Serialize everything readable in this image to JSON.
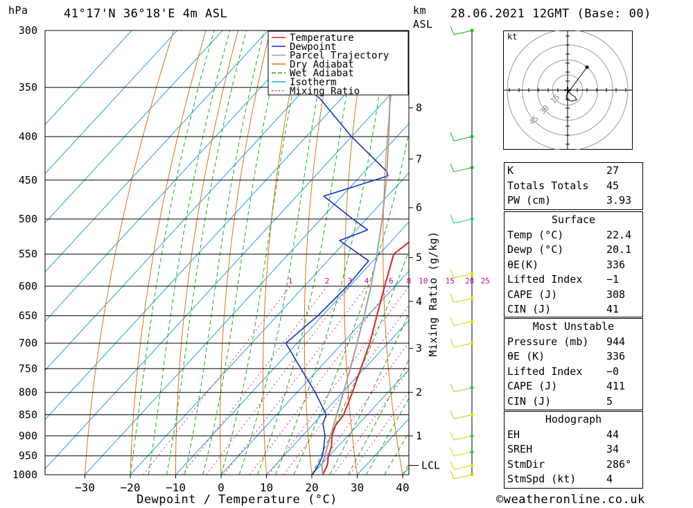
{
  "header": {
    "pressure_unit": "hPa",
    "location": "41°17'N 36°18'E 4m ASL",
    "height_unit_top": "km",
    "height_unit_bottom": "ASL",
    "datetime": "28.06.2021 12GMT (Base: 00)"
  },
  "footer": {
    "copyright": "©weatheronline.co.uk"
  },
  "chart_data": {
    "type": "line",
    "title": "",
    "xlabel": "Dewpoint / Temperature (°C)",
    "ylabel": "hPa",
    "right_axis_label": "Mixing Ratio (g/kg)",
    "pressure_levels": [
      300,
      350,
      400,
      450,
      500,
      550,
      600,
      650,
      700,
      750,
      800,
      850,
      900,
      950,
      1000
    ],
    "pressure_tick_labels": [
      "300",
      "350",
      "400",
      "450",
      "500",
      "550",
      "600",
      "650",
      "700",
      "750",
      "800",
      "850",
      "900",
      "950",
      "1000"
    ],
    "x_ticks": [
      -30,
      -20,
      -10,
      0,
      10,
      20,
      30,
      40
    ],
    "x_tick_labels": [
      "−30",
      "−20",
      "−10",
      "0",
      "10",
      "20",
      "30",
      "40"
    ],
    "ylim": [
      1000,
      300
    ],
    "log_pressure_axis": true,
    "km_ticks": [
      {
        "km": 1,
        "pressure": 900
      },
      {
        "km": 2,
        "pressure": 800
      },
      {
        "km": 3,
        "pressure": 710
      },
      {
        "km": 4,
        "pressure": 625
      },
      {
        "km": 5,
        "pressure": 555
      },
      {
        "km": 6,
        "pressure": 485
      },
      {
        "km": 7,
        "pressure": 425
      },
      {
        "km": 8,
        "pressure": 370
      }
    ],
    "km_tick_labels": [
      "1",
      "2",
      "3",
      "4",
      "5",
      "6",
      "7",
      "8"
    ],
    "lcl_label": "LCL",
    "lcl_pressure": 975,
    "mixing_ratio_labels": [
      "1",
      "2",
      "3",
      "4",
      "6",
      "8",
      "10",
      "15",
      "20",
      "25"
    ],
    "legend": {
      "placement": "top-right",
      "entries": [
        "Temperature",
        "Dewpoint",
        "Parcel Trajectory",
        "Dry Adiabat",
        "Wet Adiabat",
        "Isotherm",
        "Mixing Ratio"
      ],
      "colors": [
        "#e02020",
        "#1030d0",
        "#a0a0a0",
        "#e07010",
        "#10b010",
        "#20a0e0",
        "#e020a0"
      ]
    },
    "series": [
      {
        "name": "Temperature",
        "color": "#e02020",
        "pressure": [
          1000,
          975,
          950,
          925,
          900,
          875,
          850,
          800,
          750,
          700,
          650,
          600,
          550,
          530,
          500,
          450,
          400,
          350,
          320,
          300
        ],
        "values": [
          22.4,
          21.5,
          19.8,
          18.5,
          16.5,
          15.2,
          14.8,
          12.2,
          9.2,
          6.0,
          2.0,
          -2.3,
          -6.8,
          -5.8,
          -10.3,
          -17.5,
          -25.0,
          -34.5,
          -40.5,
          -46.0
        ]
      },
      {
        "name": "Dewpoint",
        "color": "#1030d0",
        "pressure": [
          1000,
          975,
          950,
          925,
          900,
          870,
          850,
          800,
          750,
          700,
          650,
          600,
          560,
          530,
          515,
          500,
          470,
          445,
          440,
          400,
          360,
          340,
          325,
          300
        ],
        "values": [
          20.1,
          19.5,
          18.5,
          16.8,
          15.0,
          12.0,
          11.0,
          4.0,
          -4.0,
          -12.5,
          -11.0,
          -10.5,
          -11.0,
          -21.5,
          -17.5,
          -23.0,
          -34.0,
          -24.0,
          -25.0,
          -40.0,
          -55.0,
          -66.0,
          -68.0,
          -66.0
        ]
      },
      {
        "name": "Parcel Trajectory",
        "color": "#a0a0a0",
        "pressure": [
          1000,
          975,
          950,
          900,
          850,
          800,
          750,
          700,
          650,
          600,
          550,
          500,
          450,
          400,
          350,
          300
        ],
        "values": [
          22.4,
          20.3,
          19.0,
          16.2,
          13.3,
          10.2,
          6.9,
          3.2,
          -0.8,
          -5.3,
          -10.5,
          -16.5,
          -23.5,
          -31.8,
          -41.5,
          -53.0
        ]
      }
    ]
  },
  "hodograph": {
    "unit_label": "kt",
    "ring_labels": [
      "15",
      "30",
      "45"
    ],
    "storm_marker": "+"
  },
  "indices": {
    "basic": [
      {
        "label": "K",
        "value": "27"
      },
      {
        "label": "Totals Totals",
        "value": "45"
      },
      {
        "label": "PW (cm)",
        "value": "3.93"
      }
    ],
    "surface_title": "Surface",
    "surface": [
      {
        "label": "Temp (°C)",
        "value": "22.4"
      },
      {
        "label": "Dewp (°C)",
        "value": "20.1"
      },
      {
        "label": "θE(K)",
        "value": "336"
      },
      {
        "label": "Lifted Index",
        "value": "−1"
      },
      {
        "label": "CAPE (J)",
        "value": "308"
      },
      {
        "label": "CIN (J)",
        "value": "41"
      }
    ],
    "mu_title": "Most Unstable",
    "most_unstable": [
      {
        "label": "Pressure (mb)",
        "value": "944"
      },
      {
        "label": "θE (K)",
        "value": "336"
      },
      {
        "label": "Lifted Index",
        "value": "−0"
      },
      {
        "label": "CAPE (J)",
        "value": "411"
      },
      {
        "label": "CIN (J)",
        "value": "5"
      }
    ],
    "hodo_title": "Hodograph",
    "hodograph": [
      {
        "label": "EH",
        "value": "44"
      },
      {
        "label": "SREH",
        "value": "34"
      },
      {
        "label": "StmDir",
        "value": "286°"
      },
      {
        "label": "StmSpd (kt)",
        "value": "4"
      }
    ]
  },
  "wind_profile": {
    "levels": [
      {
        "pressure": 300,
        "barb_color": "#10b010",
        "dot_color": "#10c010"
      },
      {
        "pressure": 400,
        "barb_color": "#10b010",
        "dot_color": "#10c010"
      },
      {
        "pressure": 435,
        "barb_color": "#10b010",
        "dot_color": "#10c010"
      },
      {
        "pressure": 500,
        "barb_color": "#20c0a0",
        "dot_color": "#20c0a0"
      },
      {
        "pressure": 580,
        "barb_color": "#d0d000",
        "dot_color": "#e0e000"
      },
      {
        "pressure": 620,
        "barb_color": "#d0d000",
        "dot_color": "#e0e000"
      },
      {
        "pressure": 660,
        "barb_color": "#d0d000",
        "dot_color": "#e0e000"
      },
      {
        "pressure": 700,
        "barb_color": "#d0d000",
        "dot_color": "#e0e000"
      },
      {
        "pressure": 790,
        "barb_color": "#a0d020",
        "dot_color": "#40c040"
      },
      {
        "pressure": 850,
        "barb_color": "#a0d020",
        "dot_color": "#e0e000"
      },
      {
        "pressure": 900,
        "barb_color": "#d0d000",
        "dot_color": "#40c040"
      },
      {
        "pressure": 940,
        "barb_color": "#d0d000",
        "dot_color": "#40c040"
      },
      {
        "pressure": 975,
        "barb_color": "#d0d000",
        "dot_color": "#e0e000"
      },
      {
        "pressure": 1000,
        "barb_color": "#d0d000",
        "dot_color": "#e0e000"
      }
    ]
  }
}
